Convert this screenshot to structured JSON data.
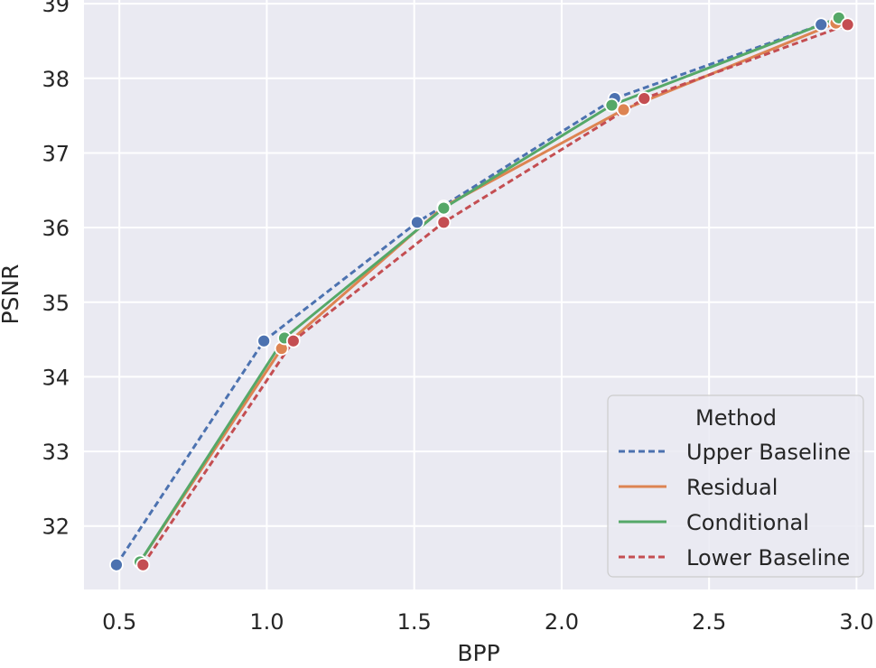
{
  "chart_data": {
    "type": "line",
    "title": "",
    "xlabel": "BPP",
    "ylabel": "PSNR",
    "xlim": [
      0.38,
      3.06
    ],
    "ylim": [
      31.15,
      39.05
    ],
    "xticks": [
      0.5,
      1.0,
      1.5,
      2.0,
      2.5,
      3.0
    ],
    "xtick_labels": [
      "0.5",
      "1.0",
      "1.5",
      "2.0",
      "2.5",
      "3.0"
    ],
    "yticks": [
      32,
      33,
      34,
      35,
      36,
      37,
      38,
      39
    ],
    "ytick_labels": [
      "32",
      "33",
      "34",
      "35",
      "36",
      "37",
      "38",
      "39"
    ],
    "grid": true,
    "legend": {
      "title": "Method",
      "placement": "lower-right"
    },
    "series": [
      {
        "name": "Upper Baseline",
        "color": "#4c72b0",
        "dashed": true,
        "x": [
          0.49,
          0.99,
          1.51,
          2.18,
          2.88
        ],
        "y": [
          31.48,
          34.48,
          36.07,
          37.73,
          38.72
        ]
      },
      {
        "name": "Residual",
        "color": "#dd8452",
        "dashed": false,
        "x": [
          0.57,
          1.05,
          1.6,
          2.21,
          2.93
        ],
        "y": [
          31.52,
          34.38,
          36.28,
          37.58,
          38.74
        ]
      },
      {
        "name": "Conditional",
        "color": "#55a868",
        "dashed": false,
        "x": [
          0.57,
          1.06,
          1.6,
          2.17,
          2.94
        ],
        "y": [
          31.52,
          34.52,
          36.26,
          37.64,
          38.81
        ]
      },
      {
        "name": "Lower Baseline",
        "color": "#c44e52",
        "dashed": true,
        "x": [
          0.58,
          1.09,
          1.6,
          2.28,
          2.97
        ],
        "y": [
          31.48,
          34.48,
          36.07,
          37.73,
          38.72
        ]
      }
    ]
  }
}
